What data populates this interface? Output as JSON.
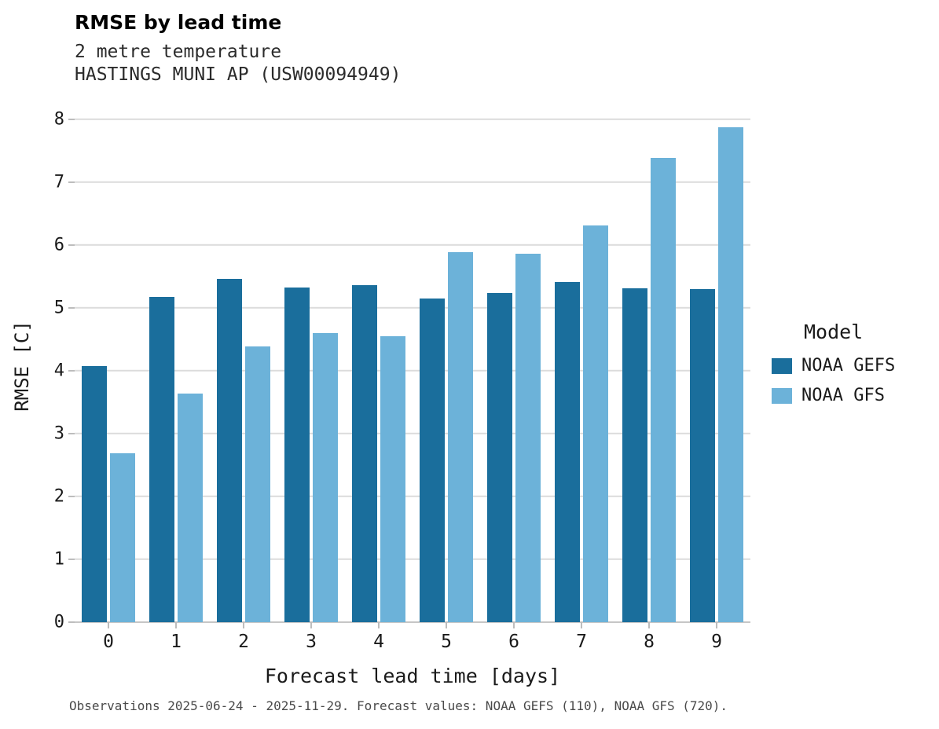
{
  "header": {
    "title": "RMSE by lead time",
    "subtitle1": "2 metre temperature",
    "subtitle2": "HASTINGS MUNI AP (USW00094949)"
  },
  "axes": {
    "x_title": "Forecast lead time [days]",
    "y_title": "RMSE [C]"
  },
  "legend": {
    "title": "Model",
    "entries": [
      {
        "label": "NOAA GEFS",
        "color": "#1a6e9c"
      },
      {
        "label": "NOAA GFS",
        "color": "#6cb2d9"
      }
    ]
  },
  "caption": "Observations 2025-06-24 - 2025-11-29. Forecast values: NOAA GEFS (110), NOAA GFS (720).",
  "chart_data": {
    "type": "bar",
    "title": "RMSE by lead time",
    "subtitle": "2 metre temperature — HASTINGS MUNI AP (USW00094949)",
    "xlabel": "Forecast lead time [days]",
    "ylabel": "RMSE [C]",
    "categories": [
      0,
      1,
      2,
      3,
      4,
      5,
      6,
      7,
      8,
      9
    ],
    "series": [
      {
        "name": "NOAA GEFS",
        "color": "#1a6e9c",
        "values": [
          4.07,
          5.18,
          5.46,
          5.33,
          5.36,
          5.15,
          5.24,
          5.41,
          5.31,
          5.3
        ]
      },
      {
        "name": "NOAA GFS",
        "color": "#6cb2d9",
        "values": [
          2.69,
          3.64,
          4.39,
          4.6,
          4.55,
          5.89,
          5.86,
          6.31,
          7.39,
          7.88
        ]
      }
    ],
    "ylim": [
      0,
      8
    ],
    "yticks": [
      0,
      1,
      2,
      3,
      4,
      5,
      6,
      7,
      8
    ],
    "grid": true,
    "legend_position": "right"
  }
}
